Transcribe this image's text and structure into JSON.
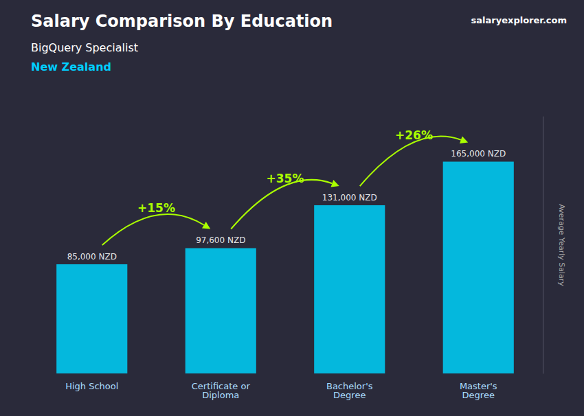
{
  "chart_data": {
    "type": "bar",
    "title": "Salary Comparison By Education",
    "subtitle": "BigQuery Specialist",
    "categories": [
      "High School",
      "Certificate or\nDiploma",
      "Bachelor's\nDegree",
      "Master's\nDegree"
    ],
    "values": [
      85000,
      97600,
      131000,
      165000
    ],
    "value_labels": [
      "85,000 NZD",
      "97,600 NZD",
      "131,000 NZD",
      "165,000 NZD"
    ],
    "data_labels": true,
    "color": "#00c8f0",
    "ylabel": "Average Yearly Salary",
    "ylim": [
      0,
      200000
    ],
    "tick_labels": "x",
    "grid": false,
    "annotations": [
      {
        "text": "New Zealand",
        "color": "#00cfff"
      },
      {
        "text": "salaryexplorer.com"
      },
      {
        "text": "+15%",
        "from": "High School",
        "to": "Certificate or\nDiploma",
        "color": "#aaff00"
      },
      {
        "text": "+35%",
        "from": "Certificate or\nDiploma",
        "to": "Bachelor's\nDegree",
        "color": "#aaff00"
      },
      {
        "text": "+26%",
        "from": "Bachelor's\nDegree",
        "to": "Master's\nDegree",
        "color": "#aaff00"
      }
    ]
  }
}
